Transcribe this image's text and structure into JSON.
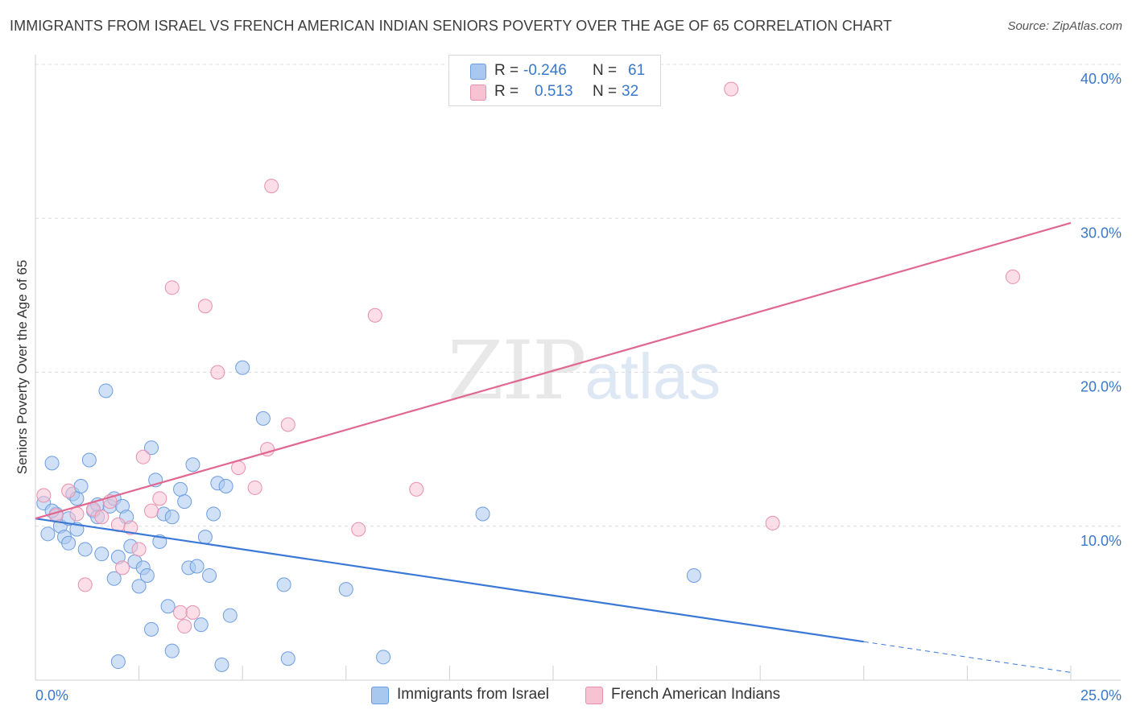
{
  "title": "IMMIGRANTS FROM ISRAEL VS FRENCH AMERICAN INDIAN SENIORS POVERTY OVER THE AGE OF 65 CORRELATION CHART",
  "source": "Source: ZipAtlas.com",
  "watermark": {
    "zip": "ZIP",
    "atlas": "atlas"
  },
  "legend": {
    "rows": [
      {
        "r_label": "R =",
        "r_value": "-0.246",
        "n_label": "N =",
        "n_value": "61",
        "color": "#a9c8f0",
        "border": "#6d9de0"
      },
      {
        "r_label": "R =",
        "r_value": "0.513",
        "n_label": "N =",
        "n_value": "32",
        "color": "#f7c3d3",
        "border": "#e890ab"
      }
    ]
  },
  "chart_data": {
    "type": "scatter",
    "title": "IMMIGRANTS FROM ISRAEL VS FRENCH AMERICAN INDIAN SENIORS POVERTY OVER THE AGE OF 65 CORRELATION CHART",
    "xlabel": "",
    "ylabel": "Seniors Poverty Over the Age of 65",
    "xlim": [
      0,
      25
    ],
    "ylim": [
      0,
      40
    ],
    "x_tick_labels": [
      "0.0%",
      "25.0%"
    ],
    "y_ticks": [
      10,
      20,
      30,
      40
    ],
    "y_tick_labels": [
      "10.0%",
      "20.0%",
      "30.0%",
      "40.0%"
    ],
    "grid": true,
    "legend_position": "top-center",
    "series": [
      {
        "name": "Immigrants from Israel",
        "color": "#6d9de0",
        "fill": "#a9c8f0",
        "trend": {
          "x": [
            0,
            20
          ],
          "y": [
            10.5,
            2.5
          ],
          "dashed_extension": [
            20,
            25
          ],
          "dashed_end_y": 0.5,
          "color": "#3a78d6"
        },
        "points": [
          [
            0.2,
            11.5
          ],
          [
            0.3,
            9.5
          ],
          [
            0.4,
            14.1
          ],
          [
            0.5,
            10.8
          ],
          [
            0.6,
            10.0
          ],
          [
            0.7,
            9.3
          ],
          [
            0.8,
            8.9
          ],
          [
            0.9,
            12.1
          ],
          [
            1.0,
            11.8
          ],
          [
            1.1,
            12.6
          ],
          [
            1.2,
            8.5
          ],
          [
            1.3,
            14.3
          ],
          [
            1.4,
            11.0
          ],
          [
            1.5,
            11.4
          ],
          [
            1.6,
            8.2
          ],
          [
            1.7,
            18.8
          ],
          [
            1.8,
            11.3
          ],
          [
            1.9,
            11.8
          ],
          [
            2.0,
            8.0
          ],
          [
            2.1,
            11.3
          ],
          [
            2.2,
            10.6
          ],
          [
            2.3,
            8.7
          ],
          [
            2.4,
            7.7
          ],
          [
            2.5,
            6.1
          ],
          [
            2.6,
            7.3
          ],
          [
            2.7,
            6.8
          ],
          [
            2.8,
            15.1
          ],
          [
            2.9,
            13.0
          ],
          [
            3.0,
            9.0
          ],
          [
            3.1,
            10.8
          ],
          [
            3.2,
            4.8
          ],
          [
            3.3,
            10.6
          ],
          [
            3.5,
            12.4
          ],
          [
            3.6,
            11.6
          ],
          [
            3.7,
            7.3
          ],
          [
            3.8,
            14.0
          ],
          [
            3.9,
            7.4
          ],
          [
            4.0,
            3.6
          ],
          [
            4.1,
            9.3
          ],
          [
            4.2,
            6.8
          ],
          [
            4.3,
            10.8
          ],
          [
            4.4,
            12.8
          ],
          [
            4.5,
            1.0
          ],
          [
            4.6,
            12.6
          ],
          [
            4.7,
            4.2
          ],
          [
            5.0,
            20.3
          ],
          [
            5.5,
            17.0
          ],
          [
            6.0,
            6.2
          ],
          [
            6.1,
            1.4
          ],
          [
            7.5,
            5.9
          ],
          [
            8.4,
            1.5
          ],
          [
            10.8,
            10.8
          ],
          [
            15.9,
            6.8
          ],
          [
            2.8,
            3.3
          ],
          [
            2.0,
            1.2
          ],
          [
            3.3,
            1.9
          ],
          [
            1.0,
            9.8
          ],
          [
            0.4,
            11.0
          ],
          [
            1.5,
            10.6
          ],
          [
            0.8,
            10.5
          ],
          [
            1.9,
            6.6
          ]
        ]
      },
      {
        "name": "French American Indians",
        "color": "#e890ab",
        "fill": "#f7c3d3",
        "trend": {
          "x": [
            0,
            25
          ],
          "y": [
            10.5,
            29.7
          ],
          "color": "#e06890"
        },
        "points": [
          [
            0.2,
            12.0
          ],
          [
            0.5,
            10.7
          ],
          [
            0.8,
            12.3
          ],
          [
            1.0,
            10.8
          ],
          [
            1.2,
            6.2
          ],
          [
            1.4,
            11.1
          ],
          [
            1.6,
            10.6
          ],
          [
            1.8,
            11.6
          ],
          [
            2.0,
            10.1
          ],
          [
            2.1,
            7.3
          ],
          [
            2.3,
            9.9
          ],
          [
            2.5,
            8.5
          ],
          [
            2.6,
            14.5
          ],
          [
            2.8,
            11.0
          ],
          [
            3.0,
            11.8
          ],
          [
            3.3,
            25.5
          ],
          [
            3.5,
            4.4
          ],
          [
            3.6,
            3.5
          ],
          [
            3.8,
            4.4
          ],
          [
            4.1,
            24.3
          ],
          [
            4.4,
            20.0
          ],
          [
            4.9,
            13.8
          ],
          [
            5.3,
            12.5
          ],
          [
            5.6,
            15.0
          ],
          [
            5.7,
            32.1
          ],
          [
            6.1,
            16.6
          ],
          [
            7.8,
            9.8
          ],
          [
            8.2,
            23.7
          ],
          [
            9.2,
            12.4
          ],
          [
            16.8,
            38.4
          ],
          [
            17.8,
            10.2
          ],
          [
            23.6,
            26.2
          ]
        ]
      }
    ]
  },
  "bottom_legend": [
    {
      "label": "Immigrants from Israel",
      "color": "#a9c8f0",
      "border": "#6d9de0"
    },
    {
      "label": "French American Indians",
      "color": "#f7c3d3",
      "border": "#e890ab"
    }
  ]
}
